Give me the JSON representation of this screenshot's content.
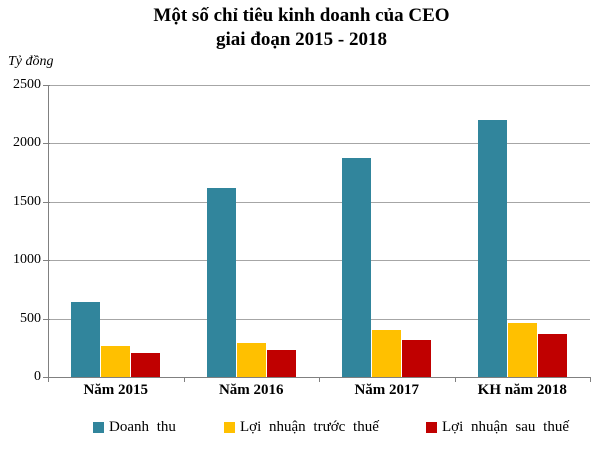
{
  "title": {
    "line1": "Một số chỉ tiêu kinh doanh của CEO",
    "line2": "giai đoạn 2015 - 2018"
  },
  "unit_label": "Tỷ đồng",
  "colors": {
    "gridline": "#A6A6A6",
    "axis": "#808080",
    "text": "#000000",
    "background": "#FFFFFF"
  },
  "chart_data": {
    "type": "bar",
    "title": "Một số chỉ tiêu kinh doanh của CEO giai đoạn 2015 - 2018",
    "ylabel": "Tỷ đồng",
    "xlabel": "",
    "categories": [
      "Năm 2015",
      "Năm 2016",
      "Năm 2017",
      "KH năm 2018"
    ],
    "series": [
      {
        "name": "Doanh thu",
        "slug": "doanh-thu",
        "color": "#31859C",
        "values": [
          644,
          1620,
          1874,
          2200
        ]
      },
      {
        "name": "Lợi nhuận trước thuế",
        "slug": "loi-nhuan-truoc-thue",
        "color": "#FFC000",
        "values": [
          263,
          290,
          406,
          466
        ]
      },
      {
        "name": "Lợi nhuận sau thuế",
        "slug": "loi-nhuan-sau-thue",
        "color": "#C00000",
        "values": [
          202,
          228,
          320,
          370
        ]
      }
    ],
    "ylim": [
      0,
      2500
    ],
    "yticks": [
      0,
      500,
      1000,
      1500,
      2000,
      2500
    ],
    "grid": true,
    "legend_position": "bottom"
  }
}
